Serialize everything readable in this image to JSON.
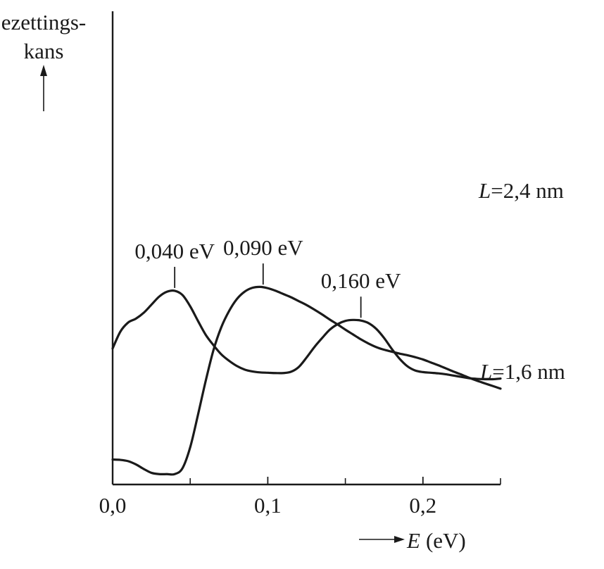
{
  "chart_data": {
    "type": "line",
    "ylabel_lines": [
      "ezettings-",
      "kans"
    ],
    "xlabel_symbol": "E",
    "xlabel_unit": "(eV)",
    "xlim": [
      0.0,
      0.25
    ],
    "x_ticks": [
      {
        "value": 0.0,
        "label": "0,0"
      },
      {
        "value": 0.1,
        "label": "0,1"
      },
      {
        "value": 0.2,
        "label": "0,2"
      }
    ],
    "x_minor_ticks": [
      0.05,
      0.15,
      0.25
    ],
    "series": [
      {
        "name": "L=2,4 nm",
        "label_symbol": "L",
        "label_rest": "=2,4 nm",
        "x": [
          0.0,
          0.005,
          0.01,
          0.015,
          0.02,
          0.025,
          0.03,
          0.035,
          0.04,
          0.045,
          0.05,
          0.055,
          0.06,
          0.065,
          0.07,
          0.075,
          0.08,
          0.085,
          0.09,
          0.095,
          0.1,
          0.105,
          0.11,
          0.115,
          0.12,
          0.125,
          0.13,
          0.135,
          0.14,
          0.145,
          0.15,
          0.155,
          0.16,
          0.165,
          0.17,
          0.175,
          0.18,
          0.185,
          0.19,
          0.195,
          0.2,
          0.205,
          0.21,
          0.215,
          0.22,
          0.225,
          0.23,
          0.235,
          0.24,
          0.245,
          0.25
        ],
        "y": [
          4.2,
          4.72,
          5.0,
          5.12,
          5.3,
          5.55,
          5.8,
          5.95,
          5.98,
          5.85,
          5.5,
          5.05,
          4.62,
          4.3,
          4.02,
          3.82,
          3.66,
          3.55,
          3.49,
          3.46,
          3.45,
          3.44,
          3.44,
          3.48,
          3.63,
          3.92,
          4.24,
          4.52,
          4.78,
          4.95,
          5.05,
          5.08,
          5.06,
          4.98,
          4.8,
          4.52,
          4.18,
          3.88,
          3.65,
          3.52,
          3.47,
          3.45,
          3.43,
          3.4,
          3.36,
          3.32,
          3.28,
          3.26,
          3.25,
          3.25,
          3.27
        ]
      },
      {
        "name": "L=1,6 nm",
        "label_symbol": "L",
        "label_rest": "=1,6 nm",
        "x": [
          0.0,
          0.005,
          0.01,
          0.015,
          0.02,
          0.025,
          0.03,
          0.035,
          0.04,
          0.045,
          0.05,
          0.055,
          0.06,
          0.065,
          0.07,
          0.075,
          0.08,
          0.085,
          0.09,
          0.095,
          0.1,
          0.105,
          0.11,
          0.115,
          0.12,
          0.125,
          0.13,
          0.135,
          0.14,
          0.145,
          0.15,
          0.155,
          0.16,
          0.165,
          0.17,
          0.175,
          0.18,
          0.185,
          0.19,
          0.195,
          0.2,
          0.205,
          0.21,
          0.215,
          0.22,
          0.225,
          0.23,
          0.235,
          0.24,
          0.245,
          0.25
        ],
        "y": [
          0.77,
          0.76,
          0.72,
          0.62,
          0.48,
          0.36,
          0.32,
          0.32,
          0.32,
          0.5,
          1.15,
          2.15,
          3.2,
          4.15,
          4.85,
          5.35,
          5.72,
          5.95,
          6.07,
          6.1,
          6.06,
          5.98,
          5.88,
          5.78,
          5.66,
          5.54,
          5.4,
          5.25,
          5.09,
          4.94,
          4.78,
          4.63,
          4.48,
          4.35,
          4.24,
          4.16,
          4.1,
          4.04,
          3.99,
          3.93,
          3.86,
          3.77,
          3.68,
          3.58,
          3.48,
          3.39,
          3.29,
          3.2,
          3.12,
          3.04,
          2.96
        ]
      }
    ],
    "annotations": [
      {
        "label": "0,040 eV",
        "x": 0.04,
        "series": 0
      },
      {
        "label": "0,160 eV",
        "x": 0.16,
        "series": 0
      },
      {
        "label": "0,090 eV",
        "x": 0.097,
        "series": 1
      }
    ]
  }
}
